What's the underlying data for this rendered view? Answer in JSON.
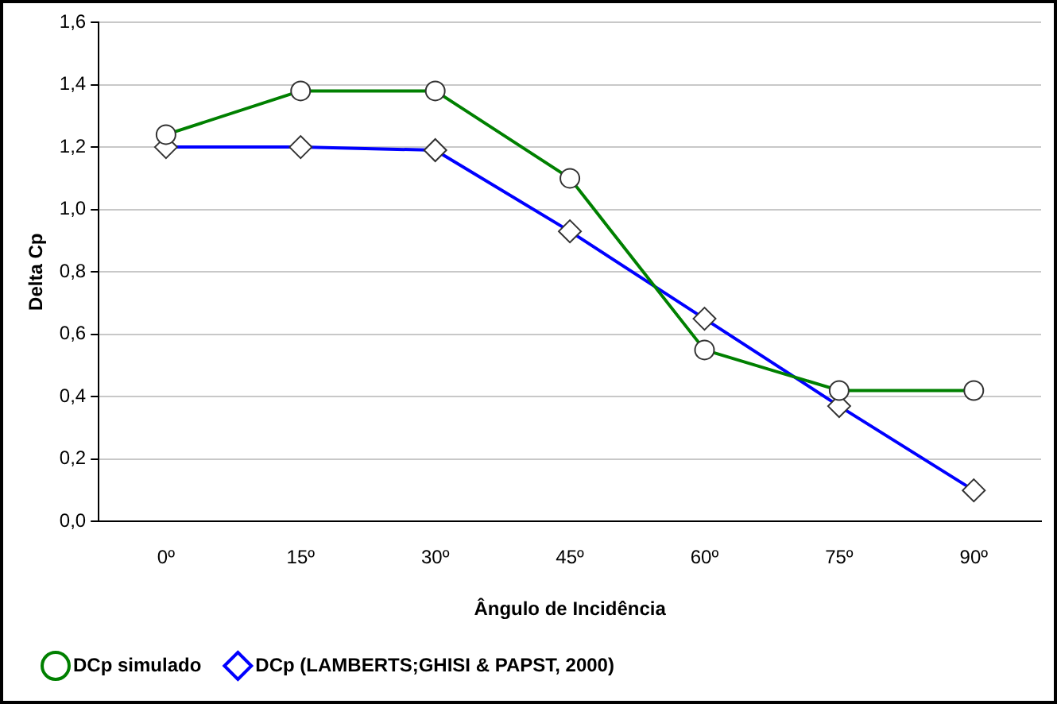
{
  "chart_data": {
    "type": "line",
    "xlabel": "Ângulo de Incidência",
    "ylabel": "Delta Cp",
    "categories": [
      "0º",
      "15º",
      "30º",
      "45º",
      "60º",
      "75º",
      "90º"
    ],
    "series": [
      {
        "name": "DCp simulado",
        "color": "#008000",
        "marker": "circle",
        "values": [
          1.24,
          1.38,
          1.38,
          1.1,
          0.55,
          0.42,
          0.42
        ]
      },
      {
        "name": "DCp (LAMBERTS;GHISI & PAPST, 2000)",
        "color": "#0000ff",
        "marker": "diamond",
        "values": [
          1.2,
          1.2,
          1.19,
          0.93,
          0.65,
          0.37,
          0.1
        ]
      }
    ],
    "ylim": [
      0,
      1.6
    ],
    "yticks": [
      {
        "value": 0,
        "label": "0,0"
      },
      {
        "value": 0.2,
        "label": "0,2"
      },
      {
        "value": 0.4,
        "label": "0,4"
      },
      {
        "value": 0.6,
        "label": "0,6"
      },
      {
        "value": 0.8,
        "label": "0,8"
      },
      {
        "value": 1.0,
        "label": "1,0"
      },
      {
        "value": 1.2,
        "label": "1,2"
      },
      {
        "value": 1.4,
        "label": "1,4"
      },
      {
        "value": 1.6,
        "label": "1,6"
      }
    ],
    "grid": "y",
    "legend": "bottom left"
  }
}
